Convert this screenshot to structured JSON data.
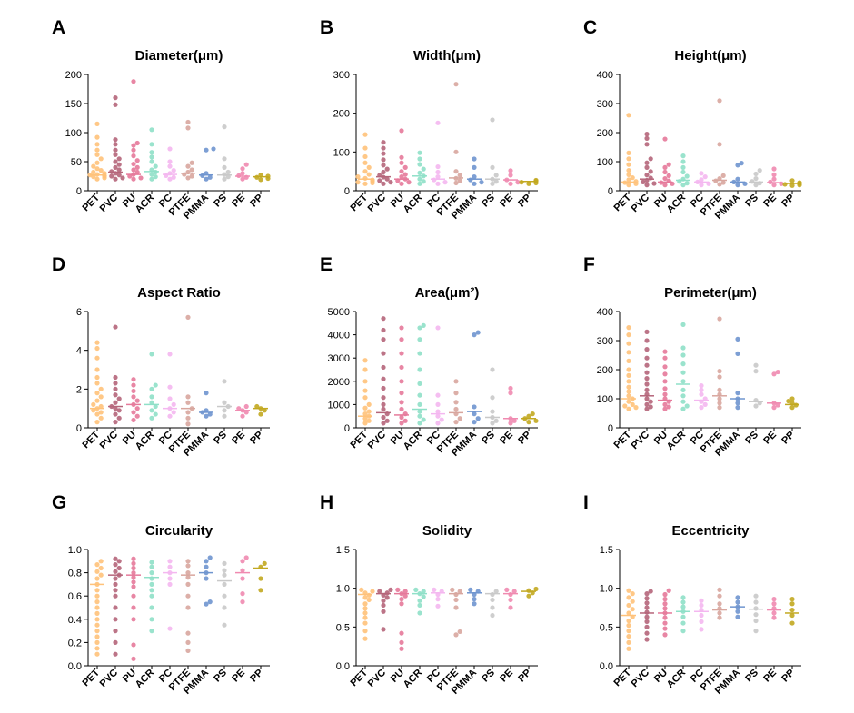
{
  "categories": [
    "PET",
    "PVC",
    "PU",
    "ACR",
    "PC",
    "PTFE",
    "PMMA",
    "PS",
    "PE",
    "PP"
  ],
  "colors": [
    "#FFC27A",
    "#B5657A",
    "#E5799A",
    "#8FE0C8",
    "#F4B7F0",
    "#D8A69E",
    "#6F95CF",
    "#C9C9C9",
    "#F08AB0",
    "#C2A820"
  ],
  "chart_data": [
    {
      "type": "scatter",
      "panel": "A",
      "title": "Diameter(μm)",
      "ylim": [
        0,
        200
      ],
      "yticks": [
        0,
        50,
        100,
        150,
        200
      ],
      "yticklabels": [
        "0",
        "50",
        "100",
        "150",
        "200"
      ],
      "medians": [
        27,
        32,
        28,
        33,
        28,
        30,
        27,
        27,
        25,
        24
      ],
      "points": [
        [
          20,
          22,
          24,
          25,
          26,
          27,
          28,
          30,
          32,
          35,
          38,
          42,
          48,
          55,
          62,
          70,
          80,
          92,
          115
        ],
        [
          20,
          22,
          25,
          27,
          30,
          33,
          36,
          40,
          45,
          50,
          55,
          62,
          70,
          80,
          88,
          148,
          160
        ],
        [
          20,
          22,
          25,
          28,
          32,
          36,
          40,
          46,
          52,
          60,
          70,
          78,
          82,
          188
        ],
        [
          20,
          24,
          28,
          32,
          36,
          42,
          50,
          58,
          66,
          80,
          105
        ],
        [
          20,
          23,
          26,
          30,
          35,
          42,
          50,
          72
        ],
        [
          22,
          25,
          28,
          32,
          36,
          42,
          48,
          108,
          118
        ],
        [
          20,
          23,
          26,
          30,
          70,
          72
        ],
        [
          20,
          24,
          28,
          32,
          40,
          55,
          110
        ],
        [
          20,
          23,
          26,
          30,
          38,
          45
        ],
        [
          19,
          21,
          23,
          25,
          27
        ]
      ]
    },
    {
      "type": "scatter",
      "panel": "B",
      "title": "Width(μm)",
      "ylim": [
        0,
        300
      ],
      "yticks": [
        0,
        100,
        200,
        300
      ],
      "yticklabels": [
        "0",
        "100",
        "200",
        "300"
      ],
      "medians": [
        30,
        36,
        30,
        38,
        30,
        33,
        30,
        30,
        28,
        24
      ],
      "points": [
        [
          18,
          20,
          22,
          25,
          28,
          32,
          36,
          42,
          50,
          60,
          72,
          88,
          110,
          145
        ],
        [
          18,
          22,
          26,
          30,
          35,
          40,
          48,
          56,
          66,
          80,
          96,
          110,
          125
        ],
        [
          18,
          22,
          26,
          30,
          36,
          42,
          50,
          60,
          72,
          86,
          155
        ],
        [
          18,
          24,
          30,
          38,
          46,
          56,
          68,
          82,
          98
        ],
        [
          18,
          22,
          28,
          36,
          48,
          62,
          175
        ],
        [
          20,
          26,
          32,
          40,
          50,
          100,
          275
        ],
        [
          18,
          22,
          28,
          36,
          60,
          82
        ],
        [
          18,
          24,
          30,
          40,
          60,
          183
        ],
        [
          18,
          22,
          28,
          40,
          52
        ],
        [
          18,
          20,
          22,
          25,
          27
        ]
      ]
    },
    {
      "type": "scatter",
      "panel": "C",
      "title": "Height(μm)",
      "ylim": [
        0,
        400
      ],
      "yticks": [
        0,
        100,
        200,
        300,
        400
      ],
      "yticklabels": [
        "0",
        "100",
        "200",
        "300",
        "400"
      ],
      "medians": [
        30,
        40,
        30,
        36,
        30,
        36,
        30,
        30,
        28,
        25
      ],
      "points": [
        [
          20,
          24,
          28,
          32,
          38,
          45,
          55,
          70,
          90,
          110,
          130,
          260
        ],
        [
          20,
          25,
          30,
          36,
          44,
          54,
          66,
          80,
          96,
          110,
          160,
          180,
          195
        ],
        [
          20,
          24,
          28,
          34,
          42,
          52,
          64,
          80,
          90,
          178
        ],
        [
          20,
          26,
          32,
          40,
          50,
          64,
          80,
          100,
          120
        ],
        [
          20,
          24,
          30,
          38,
          48,
          60
        ],
        [
          22,
          28,
          34,
          42,
          52,
          160,
          310
        ],
        [
          20,
          24,
          30,
          40,
          88,
          95
        ],
        [
          20,
          26,
          32,
          42,
          58,
          70
        ],
        [
          20,
          24,
          30,
          40,
          55,
          75
        ],
        [
          18,
          20,
          22,
          25,
          28,
          35
        ]
      ]
    },
    {
      "type": "scatter",
      "panel": "D",
      "title": "Aspect Ratio",
      "ylim": [
        0,
        6
      ],
      "yticks": [
        0,
        2,
        4,
        6
      ],
      "yticklabels": [
        "0",
        "2",
        "4",
        "6"
      ],
      "medians": [
        1.0,
        1.1,
        1.2,
        1.2,
        1.0,
        1.0,
        0.8,
        1.1,
        0.9,
        1.0
      ],
      "points": [
        [
          0.3,
          0.5,
          0.7,
          0.8,
          0.9,
          1.0,
          1.1,
          1.2,
          1.4,
          1.6,
          1.8,
          2.0,
          2.3,
          2.6,
          3.0,
          3.6,
          4.1,
          4.4
        ],
        [
          0.3,
          0.5,
          0.7,
          0.9,
          1.0,
          1.1,
          1.3,
          1.5,
          1.7,
          2.0,
          2.3,
          2.6,
          5.2
        ],
        [
          0.4,
          0.6,
          0.8,
          1.0,
          1.2,
          1.4,
          1.6,
          1.9,
          2.2,
          2.5
        ],
        [
          0.5,
          0.7,
          0.9,
          1.1,
          1.3,
          1.6,
          2.0,
          2.2,
          3.8
        ],
        [
          0.6,
          0.8,
          1.0,
          1.2,
          1.5,
          2.1,
          3.8
        ],
        [
          0.2,
          0.5,
          0.8,
          1.0,
          1.3,
          1.6,
          5.7
        ],
        [
          0.6,
          0.7,
          0.8,
          0.9,
          1.8
        ],
        [
          0.6,
          0.9,
          1.1,
          1.3,
          2.4
        ],
        [
          0.6,
          0.8,
          0.9,
          1.0,
          1.1
        ],
        [
          0.7,
          0.9,
          1.0,
          1.1
        ]
      ]
    },
    {
      "type": "scatter",
      "panel": "E",
      "title": "Area(μm²)",
      "ylim": [
        0,
        5000
      ],
      "yticks": [
        0,
        1000,
        2000,
        3000,
        4000,
        5000
      ],
      "yticklabels": [
        "0",
        "1000",
        "2000",
        "3000",
        "4000",
        "5000"
      ],
      "medians": [
        500,
        650,
        550,
        800,
        600,
        650,
        700,
        450,
        400,
        400
      ],
      "points": [
        [
          200,
          300,
          400,
          500,
          600,
          700,
          850,
          1000,
          1300,
          1600,
          2000,
          2500,
          2900
        ],
        [
          200,
          300,
          450,
          600,
          800,
          1000,
          1300,
          1700,
          2100,
          2600,
          3200,
          3800,
          4200,
          4700
        ],
        [
          200,
          300,
          450,
          600,
          800,
          1100,
          1500,
          2000,
          2600,
          3200,
          3800,
          4300
        ],
        [
          200,
          350,
          500,
          700,
          1000,
          1400,
          1900,
          2500,
          3200,
          3800,
          4300,
          4400
        ],
        [
          200,
          350,
          500,
          700,
          1000,
          1400,
          4300
        ],
        [
          250,
          400,
          600,
          800,
          1100,
          1500,
          2000
        ],
        [
          250,
          400,
          600,
          900,
          4000,
          4100
        ],
        [
          200,
          300,
          450,
          700,
          1300,
          2500
        ],
        [
          200,
          300,
          400,
          1500,
          1700
        ],
        [
          250,
          300,
          400,
          500,
          600
        ]
      ]
    },
    {
      "type": "scatter",
      "panel": "F",
      "title": "Perimeter(μm)",
      "ylim": [
        0,
        400
      ],
      "yticks": [
        0,
        100,
        200,
        300,
        400
      ],
      "yticklabels": [
        "0",
        "100",
        "200",
        "300",
        "400"
      ],
      "medians": [
        100,
        110,
        95,
        150,
        95,
        110,
        100,
        90,
        85,
        80
      ],
      "points": [
        [
          65,
          70,
          75,
          80,
          90,
          100,
          110,
          125,
          140,
          160,
          180,
          200,
          230,
          260,
          290,
          320,
          345
        ],
        [
          65,
          72,
          80,
          90,
          100,
          115,
          130,
          150,
          170,
          190,
          215,
          240,
          270,
          300,
          330
        ],
        [
          65,
          72,
          80,
          90,
          100,
          115,
          135,
          160,
          185,
          210,
          240,
          262
        ],
        [
          65,
          75,
          90,
          110,
          130,
          160,
          190,
          220,
          250,
          275,
          355
        ],
        [
          70,
          80,
          90,
          100,
          115,
          130,
          145
        ],
        [
          70,
          85,
          100,
          115,
          130,
          175,
          195,
          375
        ],
        [
          70,
          85,
          100,
          120,
          255,
          305
        ],
        [
          75,
          85,
          95,
          195,
          215
        ],
        [
          70,
          78,
          85,
          185,
          192
        ],
        [
          70,
          78,
          85,
          92,
          100
        ]
      ]
    },
    {
      "type": "scatter",
      "panel": "G",
      "title": "Circularity",
      "ylim": [
        0,
        1.0
      ],
      "yticks": [
        0,
        0.2,
        0.4,
        0.6,
        0.8,
        1.0
      ],
      "yticklabels": [
        "0.0",
        "0.2",
        "0.4",
        "0.6",
        "0.8",
        "1.0"
      ],
      "medians": [
        0.7,
        0.78,
        0.78,
        0.76,
        0.8,
        0.78,
        0.8,
        0.73,
        0.8,
        0.84
      ],
      "points": [
        [
          0.1,
          0.15,
          0.2,
          0.25,
          0.3,
          0.35,
          0.4,
          0.45,
          0.5,
          0.55,
          0.6,
          0.65,
          0.7,
          0.75,
          0.78,
          0.81,
          0.84,
          0.87,
          0.9
        ],
        [
          0.1,
          0.2,
          0.3,
          0.4,
          0.5,
          0.6,
          0.65,
          0.7,
          0.75,
          0.78,
          0.81,
          0.84,
          0.87,
          0.9,
          0.92
        ],
        [
          0.06,
          0.18,
          0.4,
          0.5,
          0.6,
          0.68,
          0.72,
          0.76,
          0.8,
          0.84,
          0.88,
          0.92
        ],
        [
          0.3,
          0.4,
          0.5,
          0.6,
          0.65,
          0.7,
          0.75,
          0.8,
          0.85,
          0.89
        ],
        [
          0.32,
          0.7,
          0.75,
          0.8,
          0.85,
          0.9
        ],
        [
          0.13,
          0.2,
          0.28,
          0.5,
          0.6,
          0.7,
          0.76,
          0.8,
          0.86,
          0.9
        ],
        [
          0.53,
          0.55,
          0.75,
          0.8,
          0.85,
          0.9,
          0.93
        ],
        [
          0.35,
          0.5,
          0.6,
          0.7,
          0.78,
          0.82,
          0.88
        ],
        [
          0.55,
          0.62,
          0.75,
          0.82,
          0.9,
          0.93
        ],
        [
          0.65,
          0.75,
          0.85,
          0.88
        ]
      ]
    },
    {
      "type": "scatter",
      "panel": "H",
      "title": "Solidity",
      "ylim": [
        0,
        1.5
      ],
      "yticks": [
        0,
        0.5,
        1.0,
        1.5
      ],
      "yticklabels": [
        "0.0",
        "0.5",
        "1.0",
        "1.5"
      ],
      "medians": [
        0.92,
        0.93,
        0.93,
        0.93,
        0.94,
        0.93,
        0.94,
        0.93,
        0.93,
        0.96
      ],
      "points": [
        [
          0.35,
          0.45,
          0.55,
          0.62,
          0.68,
          0.74,
          0.8,
          0.85,
          0.88,
          0.91,
          0.94,
          0.96,
          0.98
        ],
        [
          0.47,
          0.7,
          0.78,
          0.84,
          0.88,
          0.91,
          0.94,
          0.96,
          0.98
        ],
        [
          0.22,
          0.3,
          0.42,
          0.8,
          0.86,
          0.9,
          0.93,
          0.96,
          0.98
        ],
        [
          0.68,
          0.78,
          0.84,
          0.89,
          0.93,
          0.96,
          0.98
        ],
        [
          0.77,
          0.86,
          0.92,
          0.96,
          0.98
        ],
        [
          0.4,
          0.44,
          0.75,
          0.85,
          0.92,
          0.96,
          0.98
        ],
        [
          0.8,
          0.86,
          0.92,
          0.96,
          0.98
        ],
        [
          0.65,
          0.75,
          0.85,
          0.92,
          0.96
        ],
        [
          0.75,
          0.85,
          0.92,
          0.96,
          0.98
        ],
        [
          0.9,
          0.94,
          0.97,
          0.99
        ]
      ]
    },
    {
      "type": "scatter",
      "panel": "I",
      "title": "Eccentricity",
      "ylim": [
        0,
        1.5
      ],
      "yticks": [
        0,
        0.5,
        1.0,
        1.5
      ],
      "yticklabels": [
        "0.0",
        "0.5",
        "1.0",
        "1.5"
      ],
      "medians": [
        0.65,
        0.68,
        0.68,
        0.7,
        0.7,
        0.72,
        0.76,
        0.73,
        0.72,
        0.68
      ],
      "points": [
        [
          0.22,
          0.3,
          0.38,
          0.45,
          0.52,
          0.58,
          0.63,
          0.68,
          0.73,
          0.78,
          0.83,
          0.88,
          0.93,
          0.97
        ],
        [
          0.34,
          0.42,
          0.5,
          0.57,
          0.63,
          0.69,
          0.75,
          0.81,
          0.87,
          0.93,
          0.96
        ],
        [
          0.4,
          0.48,
          0.55,
          0.62,
          0.68,
          0.74,
          0.8,
          0.86,
          0.92,
          0.97
        ],
        [
          0.45,
          0.55,
          0.63,
          0.7,
          0.76,
          0.82,
          0.88
        ],
        [
          0.47,
          0.57,
          0.65,
          0.72,
          0.78,
          0.84
        ],
        [
          0.62,
          0.68,
          0.74,
          0.8,
          0.9,
          0.98
        ],
        [
          0.63,
          0.7,
          0.76,
          0.82,
          0.88
        ],
        [
          0.45,
          0.58,
          0.66,
          0.74,
          0.82,
          0.9
        ],
        [
          0.62,
          0.68,
          0.74,
          0.8,
          0.86
        ],
        [
          0.55,
          0.65,
          0.72,
          0.8,
          0.86
        ]
      ]
    }
  ]
}
